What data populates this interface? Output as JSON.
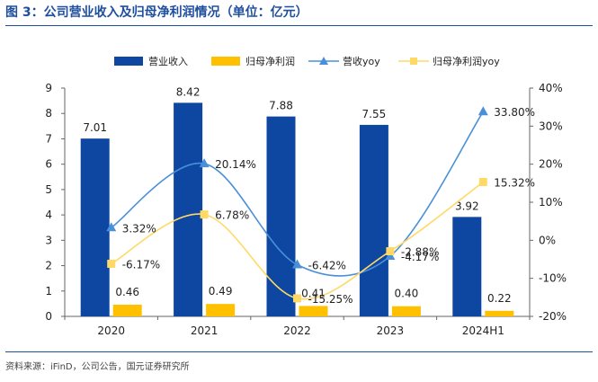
{
  "header": {
    "title": "图 3：公司营业收入及归母净利润情况（单位：亿元）"
  },
  "footer": {
    "source": "资料来源：iFinD，公司公告，国元证券研究所"
  },
  "colors": {
    "title": "#1E4E9E",
    "revenue_bar": "#0D47A1",
    "profit_bar": "#FFC000",
    "revenue_line": "#4A90D9",
    "profit_line": "#FFD966",
    "rule": "#1E4E9E"
  },
  "chart_data": {
    "type": "bar",
    "categories": [
      "2020",
      "2021",
      "2022",
      "2023",
      "2024H1"
    ],
    "series": [
      {
        "name": "营业收入",
        "kind": "bar",
        "axis": "left",
        "values": [
          7.01,
          8.42,
          7.88,
          7.55,
          3.92
        ],
        "labels": [
          "7.01",
          "8.42",
          "7.88",
          "7.55",
          "3.92"
        ]
      },
      {
        "name": "归母净利润",
        "kind": "bar",
        "axis": "left",
        "values": [
          0.46,
          0.49,
          0.41,
          0.4,
          0.22
        ],
        "labels": [
          "0.46",
          "0.49",
          "0.41",
          "0.40",
          "0.22"
        ]
      },
      {
        "name": "营收yoy",
        "kind": "line",
        "marker": "triangle",
        "axis": "right",
        "values": [
          3.32,
          20.14,
          -6.42,
          -4.17,
          33.8
        ],
        "labels": [
          "3.32%",
          "20.14%",
          "-6.42%",
          "-4.17%",
          "33.80%"
        ]
      },
      {
        "name": "归母净利润yoy",
        "kind": "line",
        "marker": "square",
        "axis": "right",
        "values": [
          -6.17,
          6.78,
          -15.25,
          -2.88,
          15.32
        ],
        "labels": [
          "-6.17%",
          "6.78%",
          "-15.25%",
          "-2.88%",
          "15.32%"
        ]
      }
    ],
    "left_axis": {
      "ylim": [
        0,
        9
      ],
      "ticks": [
        "0",
        "1",
        "2",
        "3",
        "4",
        "5",
        "6",
        "7",
        "8",
        "9"
      ]
    },
    "right_axis": {
      "ylim": [
        -20,
        40
      ],
      "ticks": [
        "-20%",
        "-10%",
        "0%",
        "10%",
        "20%",
        "30%",
        "40%"
      ]
    },
    "legend_position": "top",
    "grid": false
  }
}
